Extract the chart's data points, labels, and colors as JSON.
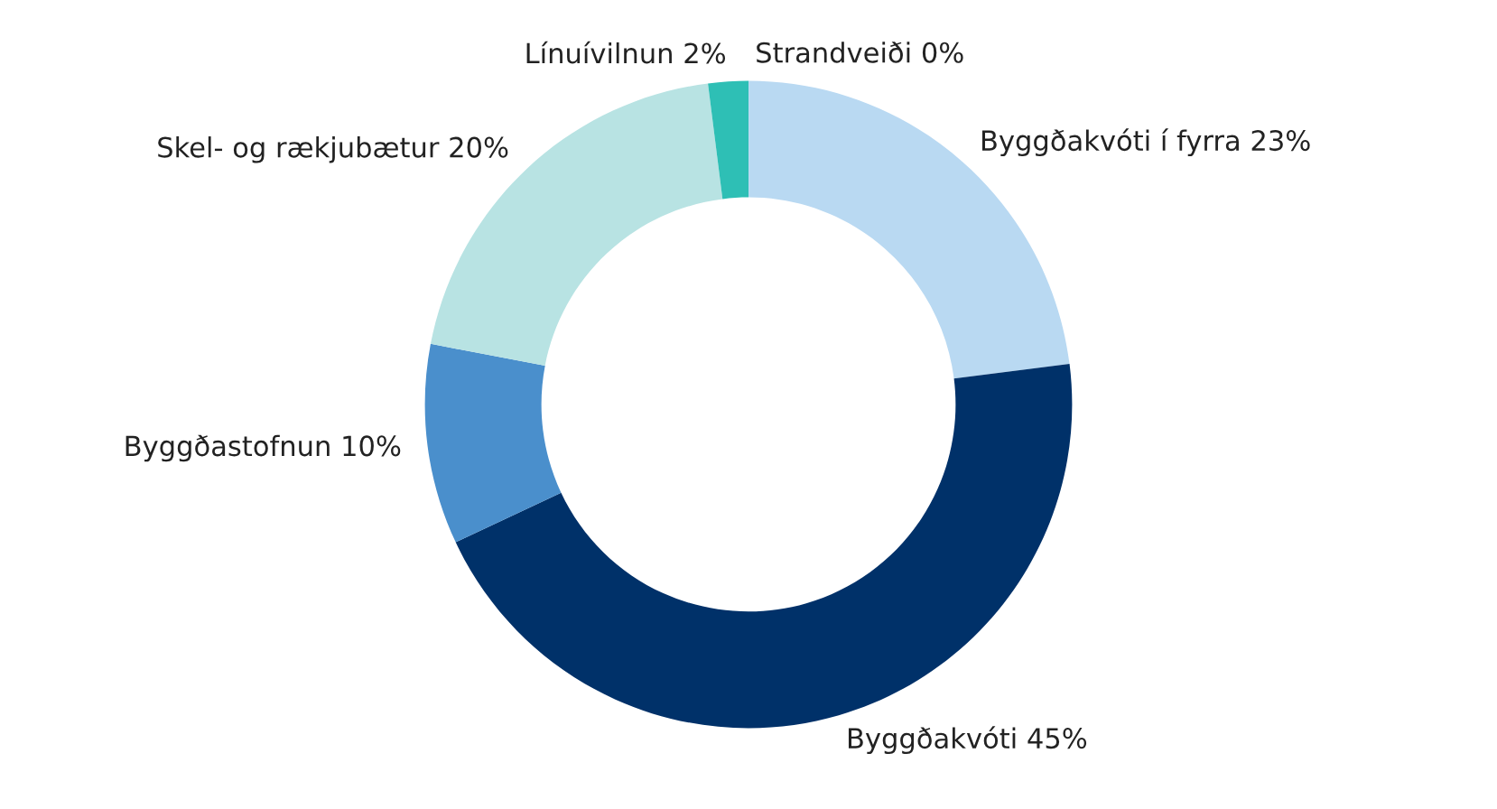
{
  "chart_data": {
    "type": "donut",
    "categories": [
      "Byggðakvóti í fyrra",
      "Byggðakvóti",
      "Byggðastofnun",
      "Skel- og rækjubætur",
      "Línuívilnun",
      "Strandveiði"
    ],
    "values": [
      23,
      45,
      10,
      20,
      2,
      0
    ],
    "value_labels": [
      "23%",
      "45%",
      "10%",
      "20%",
      "2%",
      "0%"
    ],
    "colors": [
      "#b9d9f2",
      "#003169",
      "#4a8fcc",
      "#b8e3e3",
      "#2ebfb5",
      "#1f9e96"
    ],
    "legend": false
  }
}
